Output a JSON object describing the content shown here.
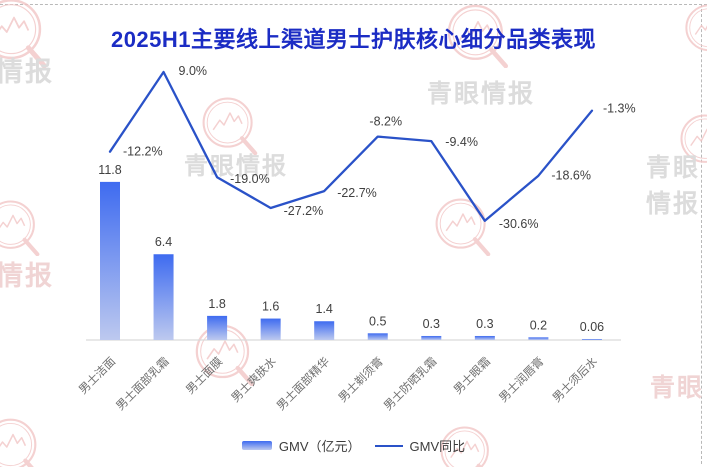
{
  "chart_data": {
    "type": "bar+line",
    "title": "2025H1主要线上渠道男士护肤核心细分品类表现",
    "categories": [
      "男士洁面",
      "男士面部乳霜",
      "男士面膜",
      "男士爽肤水",
      "男士面部精华",
      "男士剃须膏",
      "男士防晒乳霜",
      "男士眼霜",
      "男士润唇膏",
      "男士须后水"
    ],
    "series": [
      {
        "name": "GMV（亿元）",
        "type": "bar",
        "values": [
          11.8,
          6.4,
          1.8,
          1.6,
          1.4,
          0.5,
          0.3,
          0.3,
          0.2,
          0.06
        ],
        "labels": [
          "11.8",
          "6.4",
          "1.8",
          "1.6",
          "1.4",
          "0.5",
          "0.3",
          "0.3",
          "0.2",
          "0.06"
        ]
      },
      {
        "name": "GMV同比",
        "type": "line",
        "values": [
          -12.2,
          9.0,
          -19.0,
          -27.2,
          -22.7,
          -8.2,
          -9.4,
          -30.6,
          -18.6,
          -1.3
        ],
        "labels": [
          "-12.2%",
          "9.0%",
          "-19.0%",
          "-27.2%",
          "-22.7%",
          "-8.2%",
          "-9.4%",
          "-30.6%",
          "-18.6%",
          "-1.3%"
        ]
      }
    ],
    "legend_position": "bottom",
    "grid": false,
    "axes_visible": "baseline-only"
  },
  "colors": {
    "title": "#1B2CC4",
    "bar_top": "#3E6BF0",
    "bar_bottom": "#BDC9EF",
    "line": "#2A52C8",
    "value_label": "#404040",
    "category_label": "#6f6f6f",
    "baseline": "#d9d9d9",
    "watermark_pink": "#f2c6c6",
    "watermark_text_gray": "#dcdcdc",
    "watermark_text_pink": "#f0d4d4"
  },
  "watermark": {
    "texts": [
      "情报",
      "青眼情报",
      "青眼"
    ]
  }
}
